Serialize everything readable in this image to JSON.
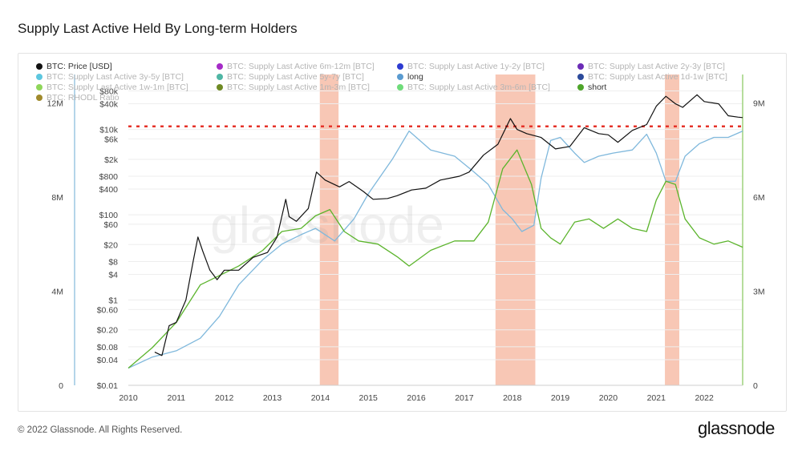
{
  "title": "Supply Last Active Held By Long-term Holders",
  "footer": "© 2022 Glassnode. All Rights Reserved.",
  "brand": "glassnode",
  "watermark": "glassnode",
  "colors": {
    "price": "#111111",
    "long": "#7fb8dc",
    "short": "#5bb42c",
    "band": "#f5b49c",
    "dashed": "#e5332a"
  },
  "legend": [
    {
      "label": "BTC: Price [USD]",
      "color": "#111111",
      "active": true
    },
    {
      "label": "BTC: Supply Last Active 6m-12m [BTC]",
      "color": "#a52bc7",
      "active": false
    },
    {
      "label": "BTC: Supply Last Active 1y-2y [BTC]",
      "color": "#2d3bd1",
      "active": false
    },
    {
      "label": "BTC: Supply Last Active 2y-3y [BTC]",
      "color": "#6b2bb6",
      "active": false
    },
    {
      "label": "BTC: Supply Last Active 3y-5y [BTC]",
      "color": "#5dc7df",
      "active": false
    },
    {
      "label": "BTC: Supply Last Active 5y-7y [BTC]",
      "color": "#4fb6a4",
      "active": false
    },
    {
      "label": "long",
      "color": "#5a9bd0",
      "active": true
    },
    {
      "label": "BTC: Supply Last Active 1d-1w [BTC]",
      "color": "#2c4a9b",
      "active": false
    },
    {
      "label": "BTC: Supply Last Active 1w-1m [BTC]",
      "color": "#8fd65a",
      "active": false
    },
    {
      "label": "BTC: Supply Last Active 1m-3m [BTC]",
      "color": "#6f8a24",
      "active": false
    },
    {
      "label": "BTC: Supply Last Active 3m-6m [BTC]",
      "color": "#6fdc7a",
      "active": false
    },
    {
      "label": "short",
      "color": "#4ea52a",
      "active": true
    },
    {
      "label": "BTC: RHODL Ratio",
      "color": "#a08a2c",
      "active": false
    }
  ],
  "chart_data": {
    "type": "line",
    "title": "Supply Last Active Held By Long-term Holders",
    "x_ticks": [
      "2010",
      "2011",
      "2012",
      "2013",
      "2014",
      "2015",
      "2016",
      "2017",
      "2018",
      "2019",
      "2020",
      "2021",
      "2022"
    ],
    "x_range": [
      2010,
      2022.8
    ],
    "left_axis_labels": [
      "12M",
      "8M",
      "4M",
      "0"
    ],
    "left_axis_values": [
      12000000,
      8000000,
      4000000,
      0
    ],
    "left_axis_range": [
      0,
      13000000
    ],
    "price_axis_labels": [
      "$0.01",
      "$0.04",
      "$0.08",
      "$0.20",
      "$0.60",
      "$1",
      "$4",
      "$8",
      "$20",
      "$60",
      "$100",
      "$400",
      "$800",
      "$2k",
      "$6k",
      "$10k",
      "$40k",
      "$80k"
    ],
    "price_axis_values": [
      0.01,
      0.04,
      0.08,
      0.2,
      0.6,
      1,
      4,
      8,
      20,
      60,
      100,
      400,
      800,
      2000,
      6000,
      10000,
      40000,
      80000
    ],
    "price_axis_range": [
      0.01,
      150000
    ],
    "right_axis_labels": [
      "9M",
      "6M",
      "3M",
      "0"
    ],
    "right_axis_values": [
      9000000,
      6000000,
      3000000,
      0
    ],
    "right_axis_range": [
      0,
      9750000
    ],
    "reference_line": {
      "style": "dashed",
      "value": 11000000,
      "axis": "left"
    },
    "highlight_bands": [
      [
        2013.99,
        2014.38
      ],
      [
        2017.65,
        2018.48
      ],
      [
        2021.18,
        2021.48
      ]
    ],
    "series": [
      {
        "name": "BTC: Price [USD]",
        "axis": "price",
        "points": [
          [
            2010.55,
            0.06
          ],
          [
            2010.7,
            0.05
          ],
          [
            2010.85,
            0.25
          ],
          [
            2011.0,
            0.3
          ],
          [
            2011.2,
            1
          ],
          [
            2011.35,
            8
          ],
          [
            2011.45,
            30
          ],
          [
            2011.55,
            14
          ],
          [
            2011.7,
            5
          ],
          [
            2011.85,
            3
          ],
          [
            2012.0,
            5
          ],
          [
            2012.3,
            5
          ],
          [
            2012.6,
            10
          ],
          [
            2012.9,
            13
          ],
          [
            2013.1,
            30
          ],
          [
            2013.28,
            230
          ],
          [
            2013.35,
            90
          ],
          [
            2013.5,
            70
          ],
          [
            2013.75,
            140
          ],
          [
            2013.92,
            1000
          ],
          [
            2014.1,
            650
          ],
          [
            2014.4,
            450
          ],
          [
            2014.6,
            600
          ],
          [
            2014.9,
            350
          ],
          [
            2015.1,
            230
          ],
          [
            2015.4,
            240
          ],
          [
            2015.6,
            280
          ],
          [
            2015.9,
            380
          ],
          [
            2016.2,
            420
          ],
          [
            2016.5,
            650
          ],
          [
            2016.9,
            800
          ],
          [
            2017.1,
            1000
          ],
          [
            2017.4,
            2500
          ],
          [
            2017.7,
            4500
          ],
          [
            2017.96,
            18000
          ],
          [
            2018.1,
            10000
          ],
          [
            2018.3,
            8000
          ],
          [
            2018.6,
            6500
          ],
          [
            2018.9,
            3500
          ],
          [
            2019.2,
            4000
          ],
          [
            2019.5,
            11000
          ],
          [
            2019.8,
            8000
          ],
          [
            2020.0,
            7500
          ],
          [
            2020.2,
            5000
          ],
          [
            2020.5,
            9500
          ],
          [
            2020.8,
            13000
          ],
          [
            2021.0,
            35000
          ],
          [
            2021.2,
            60000
          ],
          [
            2021.4,
            40000
          ],
          [
            2021.55,
            33000
          ],
          [
            2021.85,
            65000
          ],
          [
            2022.0,
            45000
          ],
          [
            2022.3,
            40000
          ],
          [
            2022.5,
            21000
          ],
          [
            2022.7,
            19500
          ],
          [
            2022.8,
            19000
          ]
        ]
      },
      {
        "name": "long",
        "axis": "right",
        "points": [
          [
            2010.0,
            0.55
          ],
          [
            2010.5,
            0.9
          ],
          [
            2011.0,
            1.1
          ],
          [
            2011.5,
            1.5
          ],
          [
            2011.9,
            2.2
          ],
          [
            2012.3,
            3.2
          ],
          [
            2012.8,
            4.0
          ],
          [
            2013.2,
            4.5
          ],
          [
            2013.6,
            4.8
          ],
          [
            2013.9,
            5.0
          ],
          [
            2014.3,
            4.6
          ],
          [
            2014.7,
            5.3
          ],
          [
            2015.0,
            6.1
          ],
          [
            2015.5,
            7.2
          ],
          [
            2015.85,
            8.1
          ],
          [
            2016.3,
            7.5
          ],
          [
            2016.8,
            7.3
          ],
          [
            2017.2,
            6.8
          ],
          [
            2017.5,
            6.4
          ],
          [
            2017.8,
            5.6
          ],
          [
            2018.0,
            5.3
          ],
          [
            2018.2,
            4.9
          ],
          [
            2018.45,
            5.1
          ],
          [
            2018.6,
            6.6
          ],
          [
            2018.8,
            7.8
          ],
          [
            2019.0,
            7.9
          ],
          [
            2019.3,
            7.4
          ],
          [
            2019.5,
            7.1
          ],
          [
            2019.8,
            7.3
          ],
          [
            2020.1,
            7.4
          ],
          [
            2020.5,
            7.5
          ],
          [
            2020.8,
            8.0
          ],
          [
            2021.0,
            7.4
          ],
          [
            2021.2,
            6.5
          ],
          [
            2021.4,
            6.5
          ],
          [
            2021.6,
            7.3
          ],
          [
            2021.9,
            7.7
          ],
          [
            2022.2,
            7.9
          ],
          [
            2022.5,
            7.9
          ],
          [
            2022.8,
            8.1
          ]
        ]
      },
      {
        "name": "short",
        "axis": "right",
        "points": [
          [
            2010.0,
            0.55
          ],
          [
            2010.5,
            1.2
          ],
          [
            2011.0,
            2.0
          ],
          [
            2011.5,
            3.2
          ],
          [
            2011.9,
            3.5
          ],
          [
            2012.3,
            3.8
          ],
          [
            2012.8,
            4.3
          ],
          [
            2013.2,
            4.9
          ],
          [
            2013.6,
            5.0
          ],
          [
            2013.9,
            5.4
          ],
          [
            2014.2,
            5.6
          ],
          [
            2014.5,
            4.9
          ],
          [
            2014.8,
            4.6
          ],
          [
            2015.2,
            4.5
          ],
          [
            2015.6,
            4.1
          ],
          [
            2015.85,
            3.8
          ],
          [
            2016.3,
            4.3
          ],
          [
            2016.8,
            4.6
          ],
          [
            2017.2,
            4.6
          ],
          [
            2017.5,
            5.2
          ],
          [
            2017.8,
            6.9
          ],
          [
            2018.1,
            7.5
          ],
          [
            2018.4,
            6.4
          ],
          [
            2018.6,
            5.0
          ],
          [
            2018.8,
            4.7
          ],
          [
            2019.0,
            4.5
          ],
          [
            2019.3,
            5.2
          ],
          [
            2019.6,
            5.3
          ],
          [
            2019.9,
            5.0
          ],
          [
            2020.2,
            5.3
          ],
          [
            2020.5,
            5.0
          ],
          [
            2020.8,
            4.9
          ],
          [
            2021.0,
            5.9
          ],
          [
            2021.2,
            6.5
          ],
          [
            2021.4,
            6.4
          ],
          [
            2021.6,
            5.3
          ],
          [
            2021.9,
            4.7
          ],
          [
            2022.2,
            4.5
          ],
          [
            2022.5,
            4.6
          ],
          [
            2022.8,
            4.4
          ]
        ]
      }
    ]
  }
}
